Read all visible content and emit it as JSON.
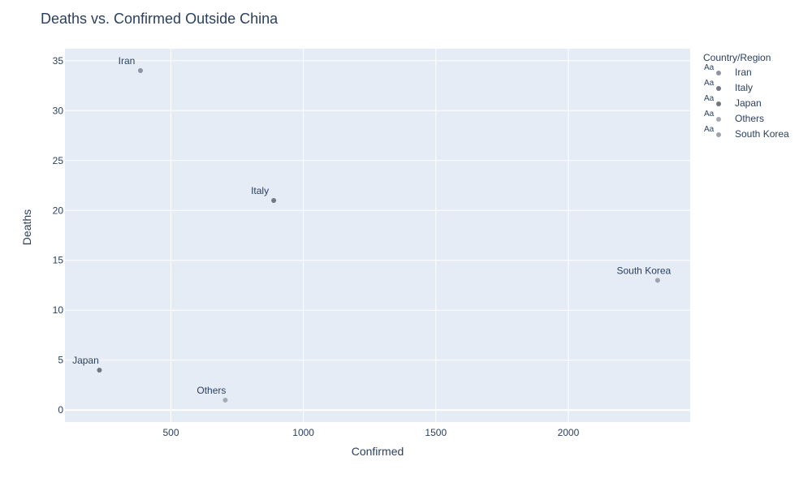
{
  "chart_data": {
    "type": "scatter",
    "title": "Deaths vs. Confirmed Outside China",
    "xlabel": "Confirmed",
    "ylabel": "Deaths",
    "xlim": [
      100,
      2460
    ],
    "ylim": [
      -1.2,
      36.2
    ],
    "x_ticks": [
      500,
      1000,
      1500,
      2000
    ],
    "y_ticks": [
      0,
      5,
      10,
      15,
      20,
      25,
      30,
      35
    ],
    "grid": true,
    "legend_title": "Country/Region",
    "legend_position": "right",
    "legend_symbol_text": "Aa",
    "series": [
      {
        "name": "Iran",
        "x": 385,
        "y": 34,
        "label": "Iran",
        "color": "#8c93a3"
      },
      {
        "name": "Italy",
        "x": 888,
        "y": 21,
        "label": "Italy",
        "color": "#727886"
      },
      {
        "name": "Japan",
        "x": 230,
        "y": 4,
        "label": "Japan",
        "color": "#6f7684"
      },
      {
        "name": "Others",
        "x": 705,
        "y": 1,
        "label": "Others",
        "color": "#a5aab5"
      },
      {
        "name": "South Korea",
        "x": 2337,
        "y": 13,
        "label": "South Korea",
        "color": "#9da2ad"
      }
    ]
  },
  "colors": {
    "plot_background": "#e5ecf6",
    "gridline": "#ffffff",
    "text": "#2a3f5f"
  }
}
